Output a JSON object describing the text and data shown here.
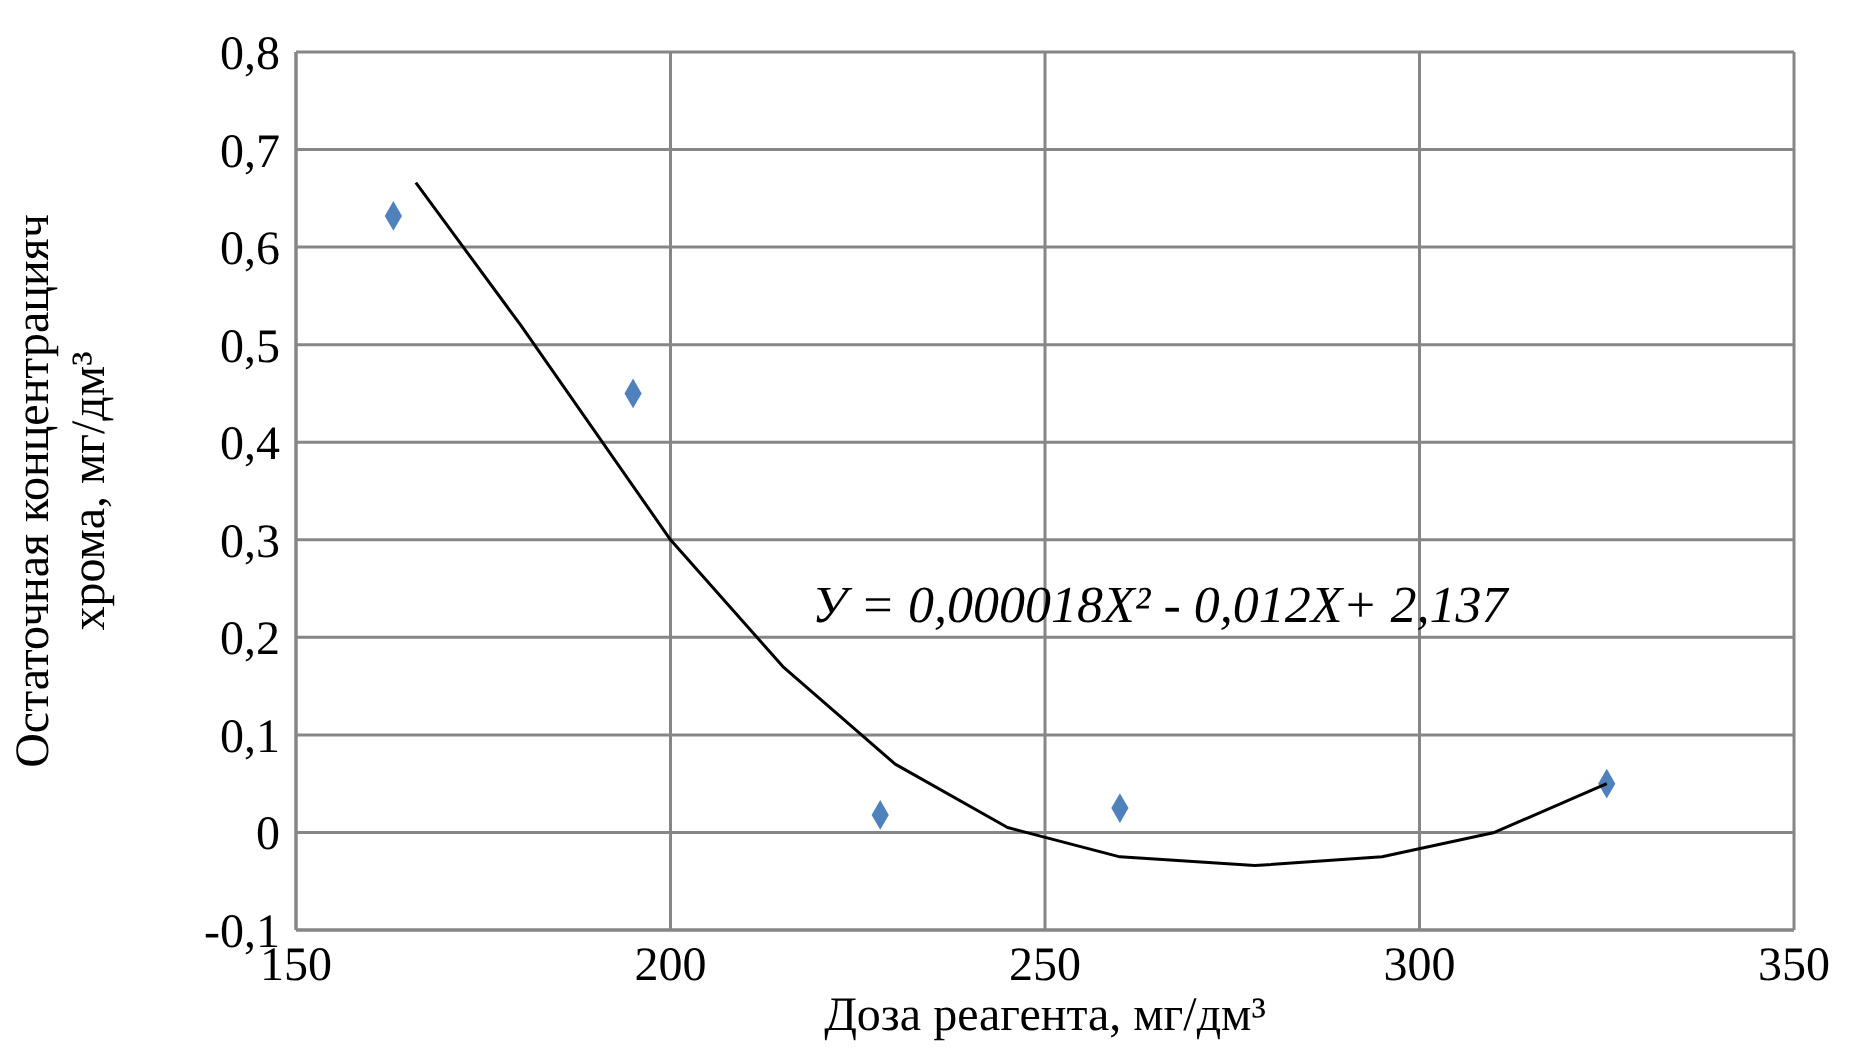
{
  "chart_data": {
    "type": "scatter",
    "xlabel": "Доза реагента, мг/дм³",
    "ylabel": "Остаточная концентрацияч хрома, мг/дм³",
    "annotations": [
      "У = 0,000018X² - 0,012X+ 2,137"
    ],
    "series": [
      {
        "color": "#4f81bd",
        "marker": "diamond",
        "x": [
          163,
          195,
          228,
          260,
          325
        ],
        "values": [
          0.632,
          0.45,
          0.018,
          0.025,
          0.05
        ]
      },
      {
        "type": "line",
        "color": "#000000",
        "marker": "none",
        "x": [
          166,
          180,
          200,
          215,
          230,
          245,
          260,
          278,
          295,
          310,
          325
        ],
        "values": [
          0.666,
          0.52,
          0.3,
          0.17,
          0.07,
          0.005,
          -0.025,
          -0.034,
          -0.025,
          0.0,
          0.05
        ]
      }
    ],
    "xlim": [
      150,
      350
    ],
    "xticks": [
      150,
      200,
      250,
      300,
      350
    ],
    "ylim": [
      -0.1,
      0.8
    ],
    "yticks": [
      {
        "value": -0.1,
        "label": "-0,1"
      },
      0,
      {
        "value": 0.1,
        "label": "0,1"
      },
      {
        "value": 0.2,
        "label": "0,2"
      },
      {
        "value": 0.3,
        "label": "0,3"
      },
      {
        "value": 0.4,
        "label": "0,4"
      },
      {
        "value": 0.5,
        "label": "0,5"
      },
      {
        "value": 0.6,
        "label": "0,6"
      },
      {
        "value": 0.7,
        "label": "0,7"
      },
      {
        "value": 0.8,
        "label": "0,8"
      }
    ],
    "grid": true
  }
}
